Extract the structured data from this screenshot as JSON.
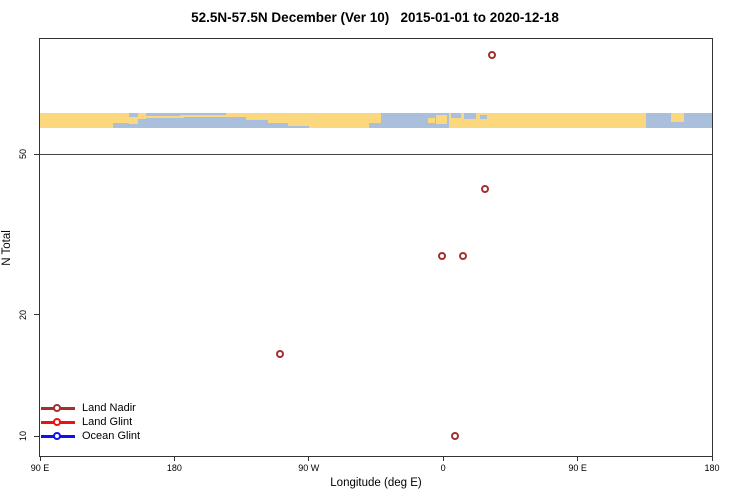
{
  "chart_data": {
    "type": "scatter",
    "title": "52.5N-57.5N December (Ver 10)   2015-01-01 to 2020-12-18",
    "xlabel": "Longitude (deg E)",
    "ylabel": "N Total",
    "x_tick_labels": [
      "90 E",
      "180",
      "90 W",
      "0",
      "90 E",
      "180"
    ],
    "x_axis_span": "450 degrees starting at 90E wrapping eastward through 180, 90W, 0, 90E to 180",
    "y_scale": "log10",
    "y_ticks": [
      10,
      20,
      50
    ],
    "ylim": [
      9,
      97
    ],
    "reference_line_at_y": 50,
    "grid": "off",
    "legend_position": "bottom-left",
    "series": [
      {
        "name": "Land Nadir",
        "color": "#a52f2f",
        "points": [
          {
            "lon_deg_e": 33,
            "n_total": 88
          },
          {
            "lon_deg_e": 28,
            "n_total": 41
          },
          {
            "lon_deg_e": -1,
            "n_total": 28
          },
          {
            "lon_deg_e": 13,
            "n_total": 28
          },
          {
            "lon_deg_e": -109,
            "n_total": 16
          },
          {
            "lon_deg_e": 8,
            "n_total": 10
          }
        ]
      },
      {
        "name": "Land Glint",
        "color": "#ee1111",
        "points": []
      },
      {
        "name": "Ocean Glint",
        "color": "#1111ee",
        "points": []
      }
    ],
    "map_strip": {
      "description": "coastline strip of the 52.5N-57.5N latitude band drawn across the plot",
      "land_color": "#fbd77d",
      "ocean_color": "#a9bfdb"
    }
  }
}
